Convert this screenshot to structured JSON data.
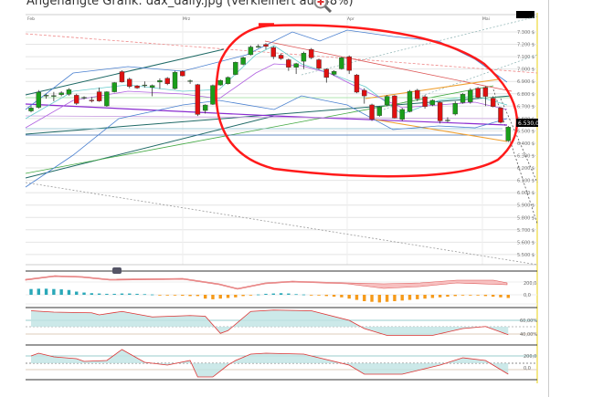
{
  "caption": "Angehängte Grafik: dax_daily.jpg (verkleinert auf 48%)",
  "zoom_icon": "magnifier-plus-icon",
  "chart_data": [
    {
      "type": "candlestick",
      "months": [
        "Feb",
        "Mrz",
        "Apr",
        "Mai"
      ],
      "y_ticks": [
        "7.300 $",
        "7.200 $",
        "7.100 $",
        "7.000 $",
        "6.900 $",
        "6.800 $",
        "6.700 $",
        "6.600 $",
        "6.500 $",
        "6.400 $",
        "6.300 $",
        "6.200 $",
        "6.100 $",
        "6.000 $",
        "5.900 $",
        "5.800 $",
        "5.700 $",
        "5.600 $",
        "5.500 $"
      ],
      "ylim": [
        5450,
        7380
      ],
      "last_price_label": "6.530,0",
      "grid": true,
      "colors": {
        "up": "#1a9e1a",
        "down": "#e01010",
        "annotation": "#ff1a1a"
      },
      "candles": [
        [
          6661,
          6700,
          6650,
          6685
        ],
        [
          6690,
          6830,
          6680,
          6813
        ],
        [
          6785,
          6800,
          6760,
          6788
        ],
        [
          6783,
          6815,
          6740,
          6785
        ],
        [
          6793,
          6820,
          6780,
          6808
        ],
        [
          6796,
          6845,
          6785,
          6833
        ],
        [
          6788,
          6800,
          6710,
          6722
        ],
        [
          6770,
          6780,
          6755,
          6771
        ],
        [
          6748,
          6775,
          6730,
          6747
        ],
        [
          6816,
          6850,
          6735,
          6742
        ],
        [
          6702,
          6820,
          6695,
          6816
        ],
        [
          6816,
          6895,
          6810,
          6890
        ],
        [
          6979,
          6990,
          6890,
          6895
        ],
        [
          6918,
          6930,
          6845,
          6859
        ],
        [
          6864,
          6870,
          6840,
          6847
        ],
        [
          6870,
          6900,
          6850,
          6871
        ],
        [
          6852,
          6875,
          6780,
          6867
        ],
        [
          6895,
          6925,
          6840,
          6907
        ],
        [
          6925,
          6935,
          6870,
          6881
        ],
        [
          6842,
          6985,
          6835,
          6974
        ],
        [
          6981,
          6990,
          6940,
          6945
        ],
        [
          6905,
          6915,
          6880,
          6905
        ],
        [
          6874,
          6880,
          6620,
          6633
        ],
        [
          6665,
          6715,
          6640,
          6709
        ],
        [
          6715,
          6875,
          6710,
          6867
        ],
        [
          6871,
          6915,
          6865,
          6908
        ],
        [
          6881,
          6940,
          6875,
          6932
        ],
        [
          6956,
          7060,
          6950,
          7055
        ],
        [
          7038,
          7100,
          7030,
          7092
        ],
        [
          7116,
          7190,
          7110,
          7178
        ],
        [
          7182,
          7200,
          7170,
          7183
        ],
        [
          7198,
          7210,
          7160,
          7183
        ],
        [
          7174,
          7185,
          7080,
          7100
        ],
        [
          7112,
          7125,
          7075,
          7085
        ],
        [
          7075,
          7085,
          6985,
          7014
        ],
        [
          7014,
          7050,
          6960,
          7043
        ],
        [
          7063,
          7140,
          7000,
          7129
        ],
        [
          7159,
          7170,
          7080,
          7092
        ],
        [
          7075,
          7085,
          6995,
          7006
        ],
        [
          6999,
          7005,
          6890,
          6932
        ],
        [
          6957,
          6990,
          6945,
          6981
        ],
        [
          7002,
          7100,
          6995,
          7092
        ],
        [
          7100,
          7110,
          6960,
          6989
        ],
        [
          6952,
          6960,
          6805,
          6813
        ],
        [
          6828,
          6845,
          6720,
          6783
        ],
        [
          6710,
          6720,
          6580,
          6594
        ],
        [
          6624,
          6700,
          6615,
          6693
        ],
        [
          6710,
          6790,
          6700,
          6779
        ],
        [
          6783,
          6790,
          6600,
          6604
        ],
        [
          6594,
          6685,
          6580,
          6673
        ],
        [
          6656,
          6830,
          6650,
          6820
        ],
        [
          6828,
          6840,
          6740,
          6759
        ],
        [
          6776,
          6790,
          6680,
          6697
        ],
        [
          6710,
          6755,
          6700,
          6747
        ],
        [
          6729,
          6740,
          6560,
          6581
        ],
        [
          6587,
          6610,
          6570,
          6587
        ],
        [
          6636,
          6740,
          6625,
          6722
        ],
        [
          6729,
          6805,
          6720,
          6796
        ],
        [
          6734,
          6845,
          6720,
          6828
        ],
        [
          6845,
          6855,
          6760,
          6771
        ],
        [
          6850,
          6860,
          6700,
          6779
        ],
        [
          6764,
          6780,
          6690,
          6697
        ],
        [
          6685,
          6695,
          6560,
          6569
        ],
        [
          6420,
          6540,
          6410,
          6530
        ]
      ]
    },
    {
      "type": "bar",
      "y_ticks": [
        "200,0",
        "0,0"
      ],
      "values": [
        90,
        95,
        95,
        90,
        85,
        75,
        50,
        35,
        25,
        20,
        15,
        15,
        20,
        20,
        15,
        10,
        5,
        -5,
        -10,
        -10,
        -15,
        -20,
        -20,
        -60,
        -70,
        -60,
        -50,
        -40,
        -20,
        -10,
        5,
        15,
        20,
        25,
        20,
        10,
        5,
        -5,
        -10,
        -20,
        -30,
        -40,
        -60,
        -80,
        -100,
        -110,
        -120,
        -110,
        -100,
        -90,
        -80,
        -70,
        -60,
        -50,
        -40,
        -30,
        -20,
        -10,
        -5,
        -10,
        -20,
        -30,
        -40,
        -50
      ]
    },
    {
      "type": "line",
      "y_ticks": [
        "60,00%",
        "40,00%"
      ],
      "points": [
        [
          0,
          74
        ],
        [
          3,
          72
        ],
        [
          8,
          71
        ],
        [
          9,
          68
        ],
        [
          12,
          73
        ],
        [
          16,
          65
        ],
        [
          21,
          67
        ],
        [
          23,
          66
        ],
        [
          25,
          41
        ],
        [
          26,
          45
        ],
        [
          29,
          73
        ],
        [
          32,
          75
        ],
        [
          37,
          74
        ],
        [
          42,
          60
        ],
        [
          44,
          48
        ],
        [
          47,
          38
        ],
        [
          53,
          38
        ],
        [
          57,
          48
        ],
        [
          60,
          51
        ],
        [
          63,
          39
        ]
      ]
    },
    {
      "type": "line",
      "y_ticks": [
        "200,0",
        "0,0"
      ],
      "points": [
        [
          0,
          200
        ],
        [
          1,
          246
        ],
        [
          3,
          185
        ],
        [
          6,
          154
        ],
        [
          7,
          108
        ],
        [
          10,
          123
        ],
        [
          12,
          308
        ],
        [
          15,
          92
        ],
        [
          16,
          77
        ],
        [
          18,
          46
        ],
        [
          21,
          123
        ],
        [
          22,
          -154
        ],
        [
          24,
          -154
        ],
        [
          26,
          46
        ],
        [
          27,
          123
        ],
        [
          29,
          231
        ],
        [
          31,
          246
        ],
        [
          36,
          231
        ],
        [
          42,
          46
        ],
        [
          44,
          -108
        ],
        [
          49,
          -108
        ],
        [
          54,
          46
        ],
        [
          57,
          169
        ],
        [
          60,
          123
        ],
        [
          63,
          -108
        ]
      ]
    }
  ]
}
